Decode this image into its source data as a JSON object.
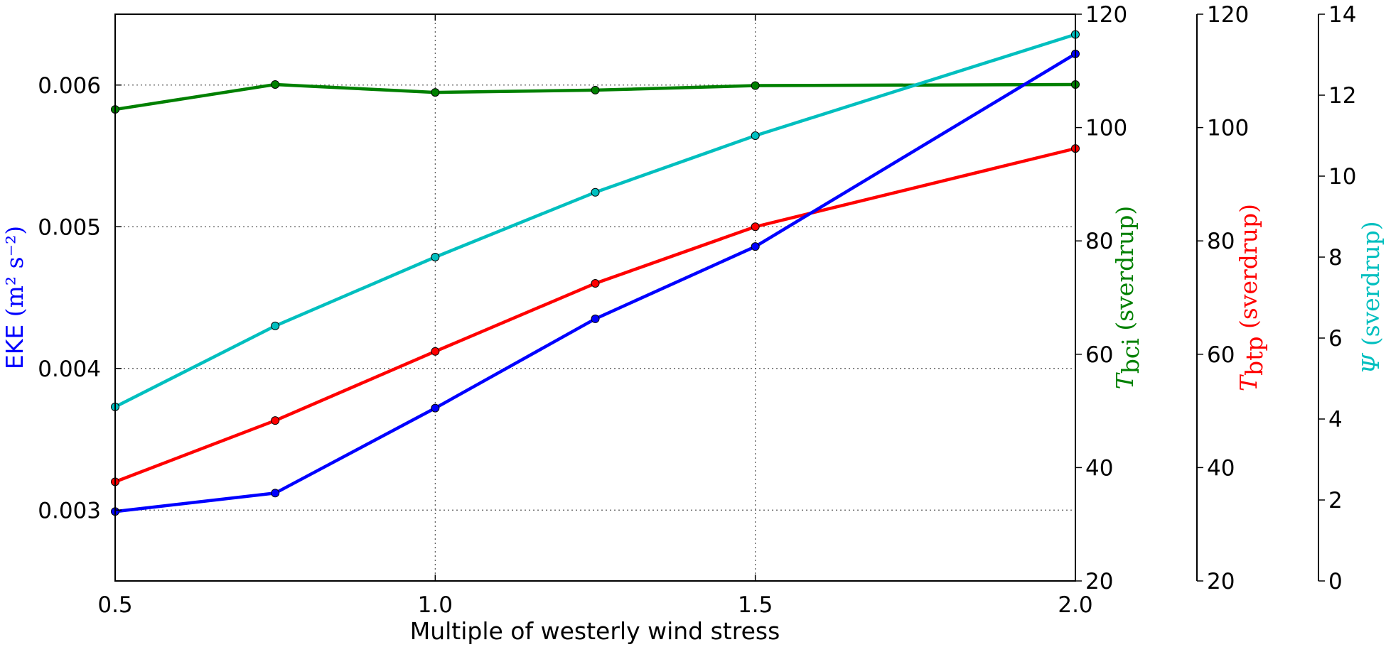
{
  "chart_data": {
    "type": "line",
    "xlabel": "Multiple of westerly wind stress",
    "xlim": [
      0.5,
      2.0
    ],
    "x_ticks": [
      "0.5",
      "1.0",
      "1.5",
      "2.0"
    ],
    "x": [
      0.5,
      0.75,
      1.0,
      1.25,
      1.5,
      2.0
    ],
    "grid": true,
    "axes": [
      {
        "id": "eke",
        "side": "left",
        "label_main": "EKE",
        "label_units": "(m² s⁻²)",
        "color": "#0000ff",
        "ylim": [
          0.0025,
          0.0065
        ],
        "ticks": [
          0.003,
          0.004,
          0.005,
          0.006
        ],
        "tick_labels": [
          "0.003",
          "0.004",
          "0.005",
          "0.006"
        ]
      },
      {
        "id": "tbci",
        "side": "right",
        "label_main": "T",
        "label_sub": "bci",
        "label_units": "(sverdrup)",
        "color": "#008000",
        "ylim": [
          20,
          120
        ],
        "ticks": [
          20,
          40,
          60,
          80,
          100,
          120
        ],
        "tick_labels": [
          "20",
          "40",
          "60",
          "80",
          "100",
          "120"
        ]
      },
      {
        "id": "tbtp",
        "side": "right",
        "label_main": "T",
        "label_sub": "btp",
        "label_units": "(sverdrup)",
        "color": "#ff0000",
        "ylim": [
          20,
          120
        ],
        "ticks": [
          20,
          40,
          60,
          80,
          100,
          120
        ],
        "tick_labels": [
          "20",
          "40",
          "60",
          "80",
          "100",
          "120"
        ]
      },
      {
        "id": "psi",
        "side": "right",
        "label_main": "Ψ",
        "label_units": "(sverdrup)",
        "color": "#00bfbf",
        "ylim": [
          0,
          14
        ],
        "ticks": [
          0,
          2,
          4,
          6,
          8,
          10,
          12,
          14
        ],
        "tick_labels": [
          "0",
          "2",
          "4",
          "6",
          "8",
          "10",
          "12",
          "14"
        ]
      }
    ],
    "series": [
      {
        "axis": "tbci",
        "color": "#008000",
        "x": [
          0.5,
          0.75,
          1.0,
          1.25,
          1.5,
          2.0
        ],
        "values": [
          103.2,
          107.6,
          106.2,
          106.6,
          107.4,
          107.6
        ]
      },
      {
        "axis": "psi",
        "color": "#00bfbf",
        "x": [
          0.5,
          0.75,
          1.0,
          1.25,
          1.5,
          2.0
        ],
        "values": [
          4.3,
          6.3,
          8.0,
          9.6,
          11.0,
          13.5
        ]
      },
      {
        "axis": "tbtp",
        "color": "#ff0000",
        "x": [
          0.5,
          0.75,
          1.0,
          1.25,
          1.5,
          2.0
        ],
        "values": [
          37.5,
          48.3,
          60.5,
          72.5,
          82.5,
          96.3
        ]
      },
      {
        "axis": "eke",
        "color": "#0000ff",
        "x": [
          0.5,
          0.75,
          1.0,
          1.25,
          1.5,
          2.0
        ],
        "values": [
          0.00299,
          0.00312,
          0.00372,
          0.00435,
          0.00486,
          0.00622
        ]
      }
    ]
  }
}
